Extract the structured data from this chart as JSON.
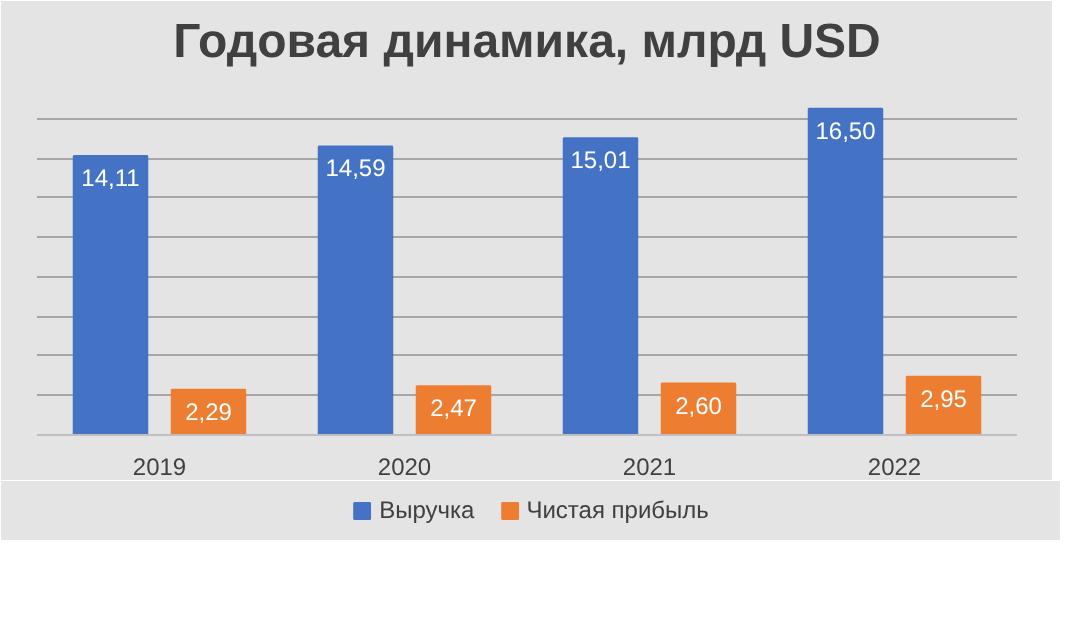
{
  "chart_data": {
    "type": "bar",
    "title": "Годовая динамика, млрд USD",
    "categories": [
      "2019",
      "2020",
      "2021",
      "2022"
    ],
    "series": [
      {
        "name": "Выручка",
        "color": "#4472c4",
        "values": [
          14.11,
          14.59,
          15.01,
          16.5
        ],
        "value_labels": [
          "14,11",
          "14,59",
          "15,01",
          "16,50"
        ]
      },
      {
        "name": "Чистая прибыль",
        "color": "#ed7d31",
        "values": [
          2.29,
          2.47,
          2.6,
          2.95
        ],
        "value_labels": [
          "2,29",
          "2,47",
          "2,60",
          "2,95"
        ]
      }
    ],
    "ylim": [
      0,
      18
    ],
    "yticks": [
      {
        "value": 0,
        "label": null
      },
      {
        "value": 2,
        "label": null
      },
      {
        "value": 4,
        "label": null
      },
      {
        "value": 6,
        "label": null
      },
      {
        "value": 8,
        "label": null
      },
      {
        "value": 10,
        "label": null
      },
      {
        "value": 12,
        "label": null
      },
      {
        "value": 14,
        "label": null
      },
      {
        "value": 16,
        "label": null
      },
      {
        "value": 18,
        "label": null
      }
    ],
    "tick_labels": "x",
    "grid": "y",
    "legend": "bottom"
  }
}
